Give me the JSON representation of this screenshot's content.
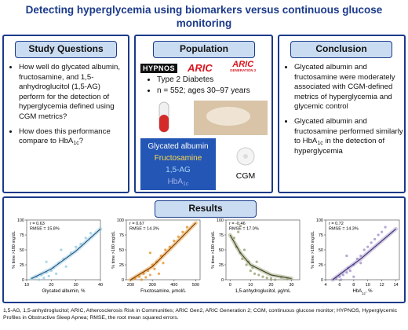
{
  "header": {
    "title": "Detecting hyperglycemia using biomarkers versus continuous glucose monitoring"
  },
  "study_questions": {
    "title": "Study Questions",
    "items": [
      [
        "How well do glycated albumin, fructosamine, and 1,5-anhydroglucitol (1,5-AG) perform for the detection of hyperglycemia defined using CGM metrics?"
      ],
      [
        "How does this performance compare to HbA",
        "1c",
        "?"
      ]
    ]
  },
  "population": {
    "title": "Population",
    "logos": {
      "hypnos": "HYPNOS",
      "aric": "ARIC",
      "aric_gen2": [
        "ARIC",
        "GENERATION 2"
      ]
    },
    "items": [
      "Type 2 Diabetes",
      "n = 552; ages 30–97 years"
    ],
    "biomarkers": [
      [
        "Glycated albumin"
      ],
      [
        "Fructosamine"
      ],
      [
        "1,5-AG"
      ],
      [
        "HbA",
        "1c"
      ]
    ],
    "device": "CGM"
  },
  "conclusion": {
    "title": "Conclusion",
    "items": [
      [
        "Glycated albumin and fructosamine were moderately associated with CGM-defined metrics of hyperglycemia and glycemic control"
      ],
      [
        "Glycated albumin and fructosamine performed similarly to HbA",
        "1c",
        " in the detection of hyperglycemia"
      ]
    ]
  },
  "results": {
    "title": "Results"
  },
  "chart_data": [
    {
      "type": "scatter",
      "annotations": [
        "r = 0.63",
        "RMSE = 15.8%"
      ],
      "x_label": [
        "Glycated albumin, %"
      ],
      "y_label": "% time >180 mg/dL",
      "color": "#8ec8e0",
      "fit_color": "#1f4e79",
      "x": [
        12,
        14,
        15,
        16,
        17,
        18,
        19,
        20,
        21,
        22,
        23,
        25,
        26,
        28,
        30,
        32,
        34,
        36,
        18,
        24
      ],
      "values": [
        2,
        5,
        0,
        8,
        3,
        12,
        6,
        15,
        20,
        10,
        28,
        35,
        22,
        45,
        55,
        60,
        70,
        78,
        30,
        50
      ],
      "fit": {
        "x": [
          12,
          20,
          30,
          40
        ],
        "values": [
          2,
          18,
          48,
          85
        ]
      },
      "xlim": [
        10,
        40
      ],
      "xticks": [
        10,
        20,
        30,
        40
      ],
      "ylim": [
        0,
        100
      ],
      "yticks": [
        0,
        25,
        50,
        75,
        100
      ]
    },
    {
      "type": "scatter",
      "annotations": [
        "r = 0.67",
        "RMSE = 14.3%"
      ],
      "x_label": [
        "Fructosamine, µmol/L"
      ],
      "y_label": "% time >180 mg/dL",
      "color": "#e38b1f",
      "fit_color": "#7a3b00",
      "x": [
        220,
        240,
        250,
        260,
        270,
        280,
        290,
        300,
        310,
        320,
        340,
        350,
        360,
        380,
        400,
        420,
        440,
        460,
        290,
        330
      ],
      "values": [
        2,
        5,
        0,
        10,
        4,
        15,
        8,
        25,
        18,
        30,
        40,
        28,
        50,
        55,
        65,
        72,
        80,
        88,
        45,
        10
      ],
      "fit": {
        "x": [
          200,
          300,
          400,
          500
        ],
        "values": [
          0,
          22,
          58,
          95
        ]
      },
      "xlim": [
        180,
        520
      ],
      "xticks": [
        200,
        300,
        400,
        500
      ],
      "ylim": [
        0,
        100
      ],
      "yticks": [
        0,
        25,
        50,
        75,
        100
      ]
    },
    {
      "type": "scatter",
      "annotations": [
        "r = -0.46",
        "RMSE = 17.0%"
      ],
      "x_label": [
        "1,5-anhydroglucitol, µg/mL"
      ],
      "y_label": "% time >180 mg/dL",
      "color": "#8f9c6a",
      "fit_color": "#3b4222",
      "x": [
        2,
        3,
        4,
        5,
        6,
        7,
        8,
        9,
        10,
        11,
        12,
        14,
        16,
        18,
        20,
        22,
        25,
        28,
        5,
        13
      ],
      "values": [
        70,
        55,
        80,
        45,
        35,
        50,
        25,
        30,
        15,
        20,
        10,
        8,
        5,
        3,
        2,
        0,
        4,
        1,
        90,
        30
      ],
      "fit": {
        "x": [
          0,
          5,
          10,
          20,
          30
        ],
        "values": [
          75,
          45,
          25,
          8,
          2
        ]
      },
      "xlim": [
        -2,
        34
      ],
      "xticks": [
        0,
        10,
        20,
        30
      ],
      "ylim": [
        0,
        100
      ],
      "yticks": [
        0,
        25,
        50,
        75,
        100
      ]
    },
    {
      "type": "scatter",
      "annotations": [
        "r = 0.72",
        "RMSE = 14.3%"
      ],
      "x_label": [
        "HbA",
        "1c",
        ", %"
      ],
      "y_label": "% time >180 mg/dL",
      "color": "#9b8ac4",
      "fit_color": "#3d2f6e",
      "x": [
        5.5,
        6,
        6.2,
        6.5,
        7,
        7.2,
        7.5,
        8,
        8.5,
        9,
        9,
        9.5,
        10,
        10.5,
        11,
        11.5,
        12,
        12.5,
        7,
        8
      ],
      "values": [
        2,
        5,
        0,
        8,
        12,
        20,
        15,
        25,
        35,
        40,
        28,
        50,
        55,
        62,
        68,
        75,
        80,
        88,
        40,
        5
      ],
      "fit": {
        "x": [
          5,
          9,
          14
        ],
        "values": [
          0,
          35,
          85
        ]
      },
      "xlim": [
        4,
        14.5
      ],
      "xticks": [
        4,
        6,
        8,
        10,
        12,
        14
      ],
      "ylim": [
        0,
        100
      ],
      "yticks": [
        0,
        25,
        50,
        75,
        100
      ]
    }
  ],
  "footer": "1,5-AG, 1,5-anhydroglucitol; ARIC, Atherosclerosis Risk in Communities; ARIC Gen2, ARIC Generation 2; CGM, continuous glucose monitor; HYPNOS, Hyperglycemic Profiles in Obstructive Sleep Apnea; RMSE, the root mean squared errors."
}
